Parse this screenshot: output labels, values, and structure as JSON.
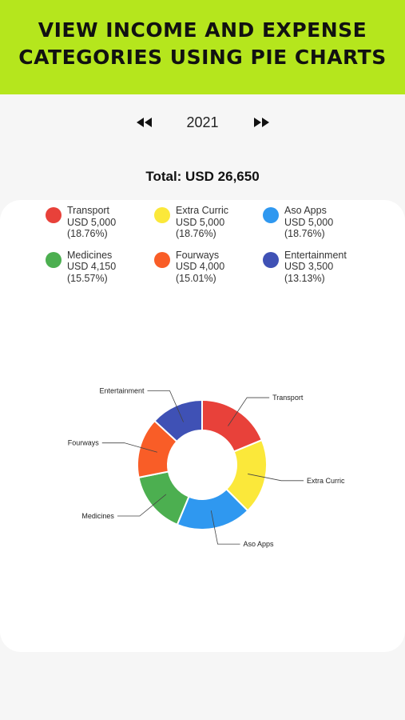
{
  "banner": {
    "title_line1": "VIEW INCOME AND EXPENSE",
    "title_line2": "CATEGORIES USING PIE CHARTS"
  },
  "year_nav": {
    "year": "2021",
    "prev_icon": "rewind-icon",
    "next_icon": "fast-forward-icon"
  },
  "total": {
    "label": "Total: USD 26,650"
  },
  "colors": {
    "banner": "#b5e61d"
  },
  "chart_data": {
    "type": "pie",
    "style": "donut",
    "title": "",
    "total": 26650,
    "currency": "USD",
    "legend_placement": "top",
    "categories": [
      "Transport",
      "Extra Curric",
      "Aso Apps",
      "Medicines",
      "Fourways",
      "Entertainment"
    ],
    "values": [
      5000,
      5000,
      5000,
      4150,
      4000,
      3500
    ],
    "amount_labels": [
      "USD 5,000",
      "USD 5,000",
      "USD 5,000",
      "USD 4,150",
      "USD 4,000",
      "USD 3,500"
    ],
    "percent_labels": [
      "(18.76%)",
      "(18.76%)",
      "(18.76%)",
      "(15.57%)",
      "(15.01%)",
      "(13.13%)"
    ],
    "colors": [
      "#e8413a",
      "#fbe83a",
      "#2f98f0",
      "#4caf50",
      "#f95d27",
      "#3f51b5"
    ]
  }
}
